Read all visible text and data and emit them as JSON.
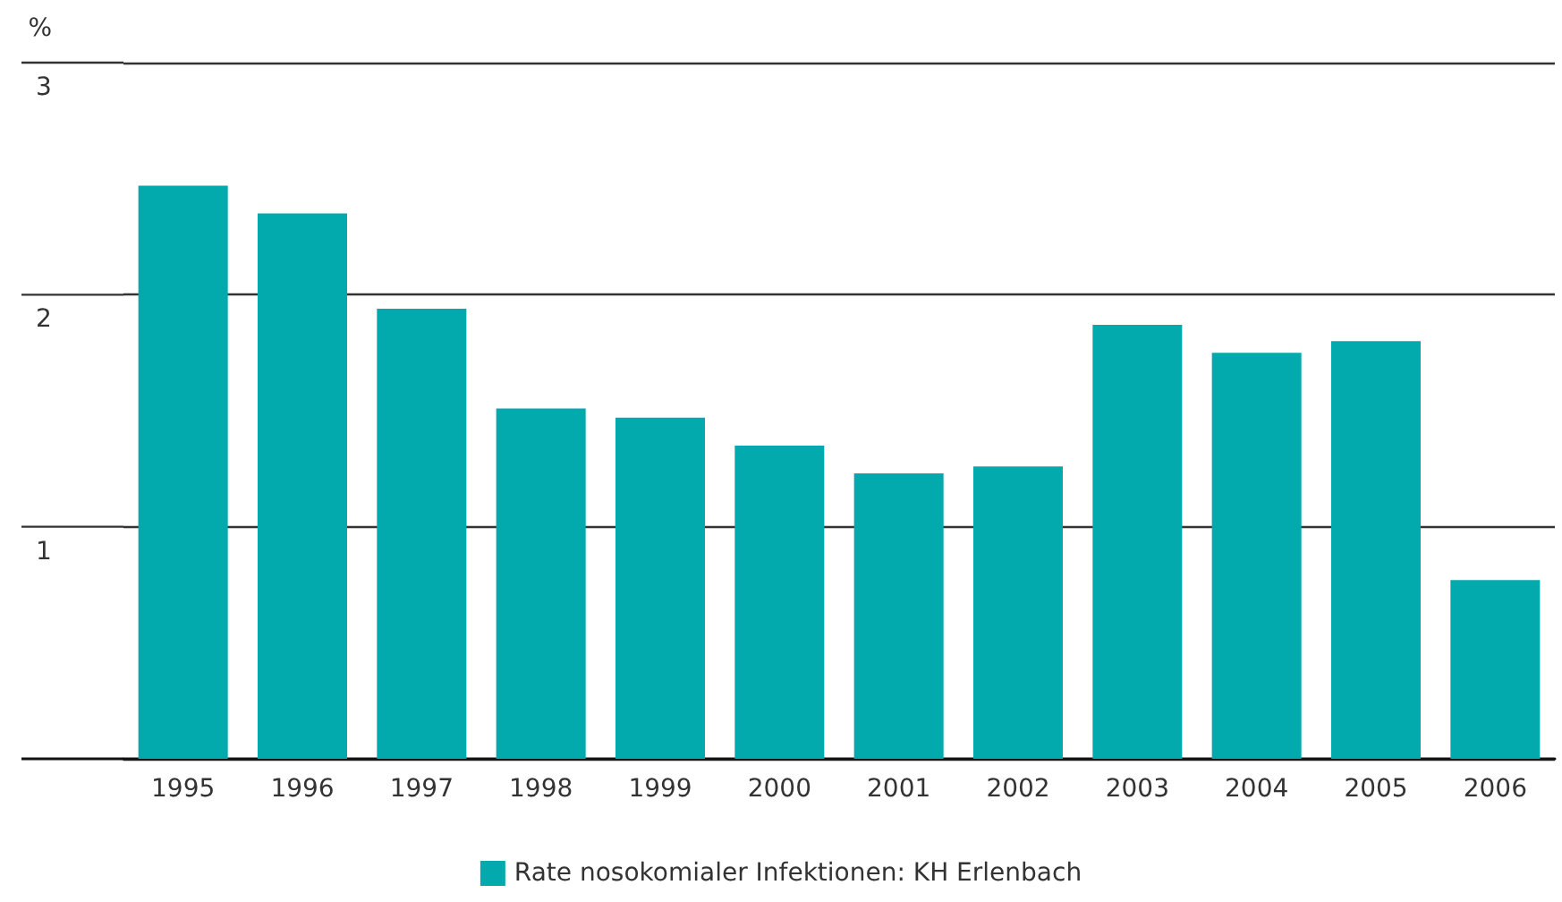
{
  "chart_data": {
    "type": "bar",
    "ylabel": "%",
    "categories": [
      "1995",
      "1996",
      "1997",
      "1998",
      "1999",
      "2000",
      "2001",
      "2002",
      "2003",
      "2004",
      "2005",
      "2006"
    ],
    "series": [
      {
        "name": "Rate nosokomialer Infektionen: KH Erlenbach",
        "color": "#03aaad",
        "values": [
          2.47,
          2.35,
          1.94,
          1.51,
          1.47,
          1.35,
          1.23,
          1.26,
          1.87,
          1.75,
          1.8,
          0.77
        ]
      }
    ],
    "ylim": [
      0,
      3
    ],
    "yticks": [
      {
        "value": 0,
        "label": null
      },
      1,
      2,
      3
    ],
    "grid": "y",
    "legend": "bottom"
  }
}
